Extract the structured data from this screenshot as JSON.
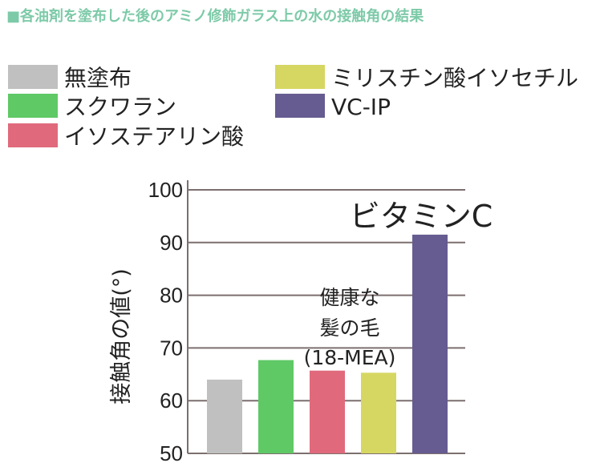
{
  "chart_data": {
    "type": "bar",
    "title": "■各油剤を塗布した後のアミノ修飾ガラス上の水の接触角の結果",
    "ylabel": "接触角の値(°)",
    "xlabel": "",
    "ylim": [
      50,
      100
    ],
    "yticks": [
      50,
      60,
      70,
      80,
      90,
      100
    ],
    "grid": true,
    "legend_placement": "top",
    "categories": [
      "無塗布",
      "スクワラン",
      "イソステアリン酸",
      "ミリスチン酸イソセチル",
      "VC-IP"
    ],
    "values": [
      64,
      67.7,
      65.7,
      65.3,
      91.5
    ],
    "colors": [
      "#c0c0c0",
      "#5fc966",
      "#e06a7c",
      "#d6d762",
      "#665c91"
    ],
    "annotations": {
      "reference_line1": "健康な",
      "reference_line2": "髪の毛",
      "reference_line3": "(18-MEA)",
      "vitamin_c": "ビタミンC"
    }
  }
}
